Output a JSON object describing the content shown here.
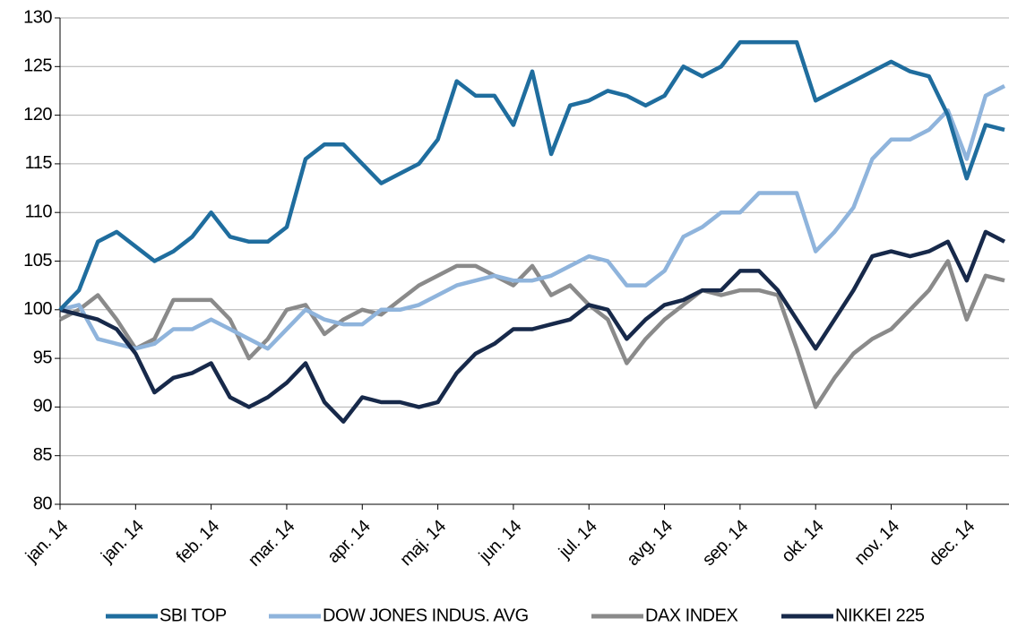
{
  "chart_data": {
    "type": "line",
    "categories": [
      "jan. 14",
      null,
      null,
      null,
      "jan. 14",
      null,
      null,
      null,
      "feb. 14",
      null,
      null,
      null,
      "mar. 14",
      null,
      null,
      null,
      "apr. 14",
      null,
      null,
      null,
      "maj. 14",
      null,
      null,
      null,
      "jun. 14",
      null,
      null,
      null,
      "jul. 14",
      null,
      null,
      null,
      "avg. 14",
      null,
      null,
      null,
      "sep. 14",
      null,
      null,
      null,
      "okt. 14",
      null,
      null,
      null,
      "nov. 14",
      null,
      null,
      null,
      "dec. 14",
      null,
      null
    ],
    "series": [
      {
        "name": "SBI TOP",
        "color": "#1f6d9e",
        "values": [
          100,
          102,
          107,
          108,
          106.5,
          105,
          106,
          107.5,
          110,
          107.5,
          107,
          107,
          108.5,
          115.5,
          117,
          117,
          115,
          113,
          114,
          115,
          117.5,
          123.5,
          122,
          122,
          119,
          124.5,
          116,
          121,
          121.5,
          122.5,
          122,
          121,
          122,
          125,
          124,
          125,
          127.5,
          127.5,
          127.5,
          127.5,
          121.5,
          122.5,
          123.5,
          124.5,
          125.5,
          124.5,
          124,
          120,
          113.5,
          119,
          118.5
        ]
      },
      {
        "name": "DOW JONES INDUS. AVG",
        "color": "#8fb4dc",
        "values": [
          100,
          100.5,
          97,
          96.5,
          96,
          96.5,
          98,
          98,
          99,
          98,
          97,
          96,
          98,
          100,
          99,
          98.5,
          98.5,
          100,
          100,
          100.5,
          101.5,
          102.5,
          103,
          103.5,
          103,
          103,
          103.5,
          104.5,
          105.5,
          105,
          102.5,
          102.5,
          104,
          107.5,
          108.5,
          110,
          110,
          112,
          112,
          112,
          106,
          108,
          110.5,
          115.5,
          117.5,
          117.5,
          118.5,
          120.5,
          115.5,
          122,
          123
        ]
      },
      {
        "name": "DAX INDEX",
        "color": "#8a8a8a",
        "values": [
          99,
          100,
          101.5,
          99,
          96,
          97,
          101,
          101,
          101,
          99,
          95,
          97,
          100,
          100.5,
          97.5,
          99,
          100,
          99.5,
          101,
          102.5,
          103.5,
          104.5,
          104.5,
          103.5,
          102.5,
          104.5,
          101.5,
          102.5,
          100.5,
          99,
          94.5,
          97,
          99,
          100.5,
          102,
          101.5,
          102,
          102,
          101.5,
          96,
          90,
          93,
          95.5,
          97,
          98,
          100,
          102,
          105,
          99,
          103.5,
          103
        ]
      },
      {
        "name": "NIKKEI 225",
        "color": "#17294a",
        "values": [
          100,
          99.5,
          99,
          98,
          95.5,
          91.5,
          93,
          93.5,
          94.5,
          91,
          90,
          91,
          92.5,
          94.5,
          90.5,
          88.5,
          91,
          90.5,
          90.5,
          90,
          90.5,
          93.5,
          95.5,
          96.5,
          98,
          98,
          98.5,
          99,
          100.5,
          100,
          97,
          99,
          100.5,
          101,
          102,
          102,
          104,
          104,
          102,
          99,
          96,
          99,
          102,
          105.5,
          106,
          105.5,
          106,
          107,
          103,
          108,
          107
        ]
      }
    ],
    "ylim": [
      80,
      130
    ],
    "yticks": [
      80,
      85,
      90,
      95,
      100,
      105,
      110,
      115,
      120,
      125,
      130
    ],
    "grid": true,
    "legend": "bottom"
  }
}
